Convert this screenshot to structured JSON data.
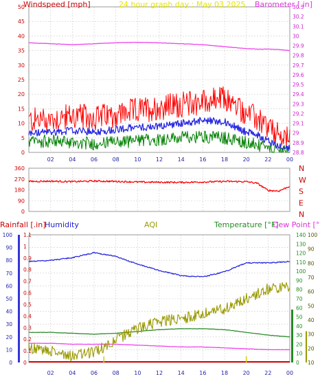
{
  "header": {
    "title": "24 hour graph day : May 03 2025",
    "windspeed_label": "Windspeed [mph]",
    "barometer_label": "Barometer [.in]"
  },
  "colors": {
    "windspeed": "#ff0000",
    "wind_avg": "#2a2ae0",
    "wind_low": "#008000",
    "barometer": "#ee44ee",
    "direction": "#ff0000",
    "rainfall": "#ff0000",
    "humidity": "#2a2ae0",
    "aqi": "#999900",
    "temperature": "#2e8b2e",
    "dew_point": "#ee44ee",
    "title": "#e6e600",
    "grid": "#cccccc"
  },
  "chart_data": [
    {
      "type": "line",
      "panel": "wind_barometer",
      "title": "24 hour graph day : May 03 2025",
      "x_ticks": [
        "02",
        "04",
        "06",
        "08",
        "10",
        "12",
        "14",
        "16",
        "18",
        "20",
        "22",
        "00"
      ],
      "y_left": {
        "label": "Windspeed [mph]",
        "ticks": [
          "0",
          "5",
          "10",
          "15",
          "20",
          "25",
          "30",
          "35",
          "40",
          "45",
          "50"
        ],
        "ylim": [
          0,
          50
        ]
      },
      "y_right": {
        "label": "Barometer [.in]",
        "ticks": [
          "28.8",
          "28.9",
          "29",
          "29.1",
          "29.2",
          "29.3",
          "29.4",
          "29.5",
          "29.6",
          "29.7",
          "29.8",
          "29.9",
          "30",
          "30.1",
          "30.2",
          "30.3"
        ],
        "ylim": [
          28.8,
          30.3
        ]
      },
      "x_hours": [
        0,
        2,
        4,
        6,
        8,
        10,
        12,
        14,
        16,
        18,
        20,
        21,
        22,
        23,
        24
      ],
      "series": [
        {
          "axis": "left",
          "wind_gust": [
            10.5,
            11,
            12,
            11.5,
            12.5,
            14,
            15,
            16,
            17,
            18,
            13,
            11,
            8,
            5,
            4
          ]
        },
        {
          "axis": "left",
          "wind_avg": [
            6.5,
            7,
            7.5,
            7,
            8,
            8.5,
            9,
            10,
            11,
            10.5,
            7,
            6,
            4,
            2,
            1.5
          ]
        },
        {
          "axis": "left",
          "wind_low": [
            3.5,
            4,
            3.5,
            3,
            3.5,
            4,
            4.5,
            5,
            5.5,
            5,
            3.5,
            2.5,
            1,
            0.5,
            0
          ]
        },
        {
          "axis": "right",
          "barometer": [
            29.93,
            29.92,
            29.91,
            29.92,
            29.93,
            29.935,
            29.93,
            29.92,
            29.91,
            29.89,
            29.87,
            29.865,
            29.865,
            29.86,
            29.85
          ]
        }
      ]
    },
    {
      "type": "line",
      "panel": "wind_direction",
      "x_hours": [
        0,
        2,
        4,
        6,
        8,
        10,
        12,
        14,
        16,
        18,
        20,
        21,
        22,
        23,
        24
      ],
      "y_left": {
        "ticks": [
          "0",
          "90",
          "180",
          "270",
          "360"
        ],
        "ylim": [
          0,
          360
        ]
      },
      "y_right_labels": [
        "N",
        "W",
        "S",
        "E",
        "N"
      ],
      "series": [
        {
          "wind_direction": [
            250,
            252,
            248,
            253,
            250,
            245,
            243,
            242,
            245,
            250,
            248,
            235,
            175,
            170,
            210
          ]
        }
      ]
    },
    {
      "type": "line",
      "panel": "rain_humidity_temperature",
      "legend": [
        "Rainfall [.in]",
        "Humidity",
        "AQI",
        "Temperature [°F]",
        "Dew Point [°F]"
      ],
      "x_ticks": [
        "02",
        "04",
        "06",
        "08",
        "10",
        "12",
        "14",
        "16",
        "18",
        "20",
        "22",
        "00"
      ],
      "y_humidity": {
        "ticks": [
          "0",
          "10",
          "20",
          "30",
          "40",
          "50",
          "60",
          "70",
          "80",
          "90",
          "100"
        ],
        "ylim": [
          0,
          100
        ]
      },
      "y_rainfall": {
        "ticks": [
          "0",
          "0.1",
          "0.2",
          "0.3",
          "0.4",
          "0.5",
          "0.6",
          "0.7",
          "0.8",
          "0.9",
          "1",
          "1.1"
        ],
        "ylim": [
          0,
          1.1
        ]
      },
      "y_temperature": {
        "ticks": [
          "0",
          "10",
          "20",
          "30",
          "40",
          "50",
          "60",
          "70",
          "80",
          "90",
          "100",
          "110",
          "120",
          "130",
          "140"
        ],
        "ylim": [
          0,
          140
        ]
      },
      "y_aqi": {
        "ticks": [
          "10",
          "20",
          "30",
          "40",
          "50",
          "60",
          "70",
          "80",
          "90",
          "100"
        ],
        "ylim": [
          10,
          100
        ]
      },
      "x_hours": [
        0,
        2,
        4,
        6,
        8,
        10,
        12,
        14,
        16,
        18,
        20,
        22,
        24
      ],
      "series": [
        {
          "name": "Humidity",
          "values": [
            79,
            80,
            82,
            86,
            83,
            77,
            72,
            68,
            67,
            71,
            78,
            78,
            79
          ]
        },
        {
          "name": "Temperature [°F]",
          "values": [
            33,
            33,
            32,
            31,
            32,
            34,
            36,
            37,
            37,
            36,
            33,
            30,
            28
          ]
        },
        {
          "name": "Dew Point [°F]",
          "values": [
            21,
            21,
            20,
            20,
            20,
            19,
            18,
            17,
            17,
            16,
            15,
            14,
            14
          ]
        },
        {
          "name": "AQI",
          "values": [
            20,
            18,
            15,
            17,
            26,
            34,
            39,
            41,
            44,
            48,
            55,
            62,
            63
          ]
        },
        {
          "name": "Rainfall [.in]",
          "values": [
            0,
            0,
            0,
            0,
            0,
            0,
            0,
            0,
            0,
            0,
            0,
            0,
            0
          ]
        }
      ]
    }
  ]
}
